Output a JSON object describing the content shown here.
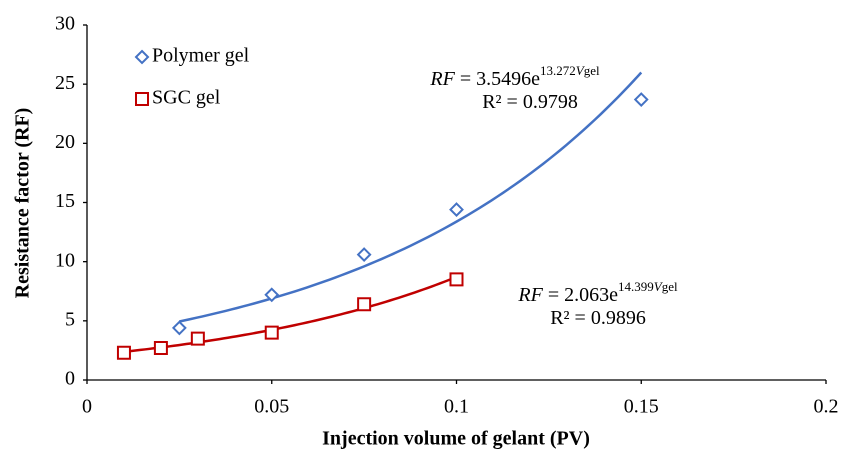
{
  "chart_data": {
    "type": "scatter",
    "xlabel": "Injection volume of gelant (PV)",
    "ylabel": "Resistance factor (RF)",
    "xlim": [
      0,
      0.2
    ],
    "xticks": [
      0,
      0.05,
      0.1,
      0.15,
      0.2
    ],
    "ylim": [
      0,
      30
    ],
    "yticks": [
      0,
      5,
      10,
      15,
      20,
      25,
      30
    ],
    "grid": false,
    "legend": "upper left",
    "series": [
      {
        "name": "Polymer gel",
        "color": "#4472c4",
        "marker": "diamond",
        "x": [
          0.025,
          0.05,
          0.075,
          0.1,
          0.15
        ],
        "values": [
          4.4,
          7.2,
          10.6,
          14.4,
          23.7
        ],
        "trend": {
          "type": "exponential",
          "a": 3.5496,
          "b": 13.272,
          "x_range": [
            0.025,
            0.15
          ],
          "lhs": "RF",
          "eq": " = ",
          "base": "e",
          "var": "V",
          "sub": "gel",
          "r2_text": "R² = ",
          "r2": 0.9798
        }
      },
      {
        "name": "SGC gel",
        "color": "#c00000",
        "marker": "square",
        "x": [
          0.01,
          0.02,
          0.03,
          0.05,
          0.075,
          0.1
        ],
        "values": [
          2.3,
          2.7,
          3.5,
          4.0,
          6.4,
          8.5
        ],
        "trend": {
          "type": "exponential",
          "a": 2.063,
          "b": 14.399,
          "x_range": [
            0.01,
            0.1
          ],
          "lhs": "RF",
          "eq": " = ",
          "base": "e",
          "var": "V",
          "sub": "gel",
          "r2_text": "R² = ",
          "r2": 0.9896
        }
      }
    ]
  }
}
